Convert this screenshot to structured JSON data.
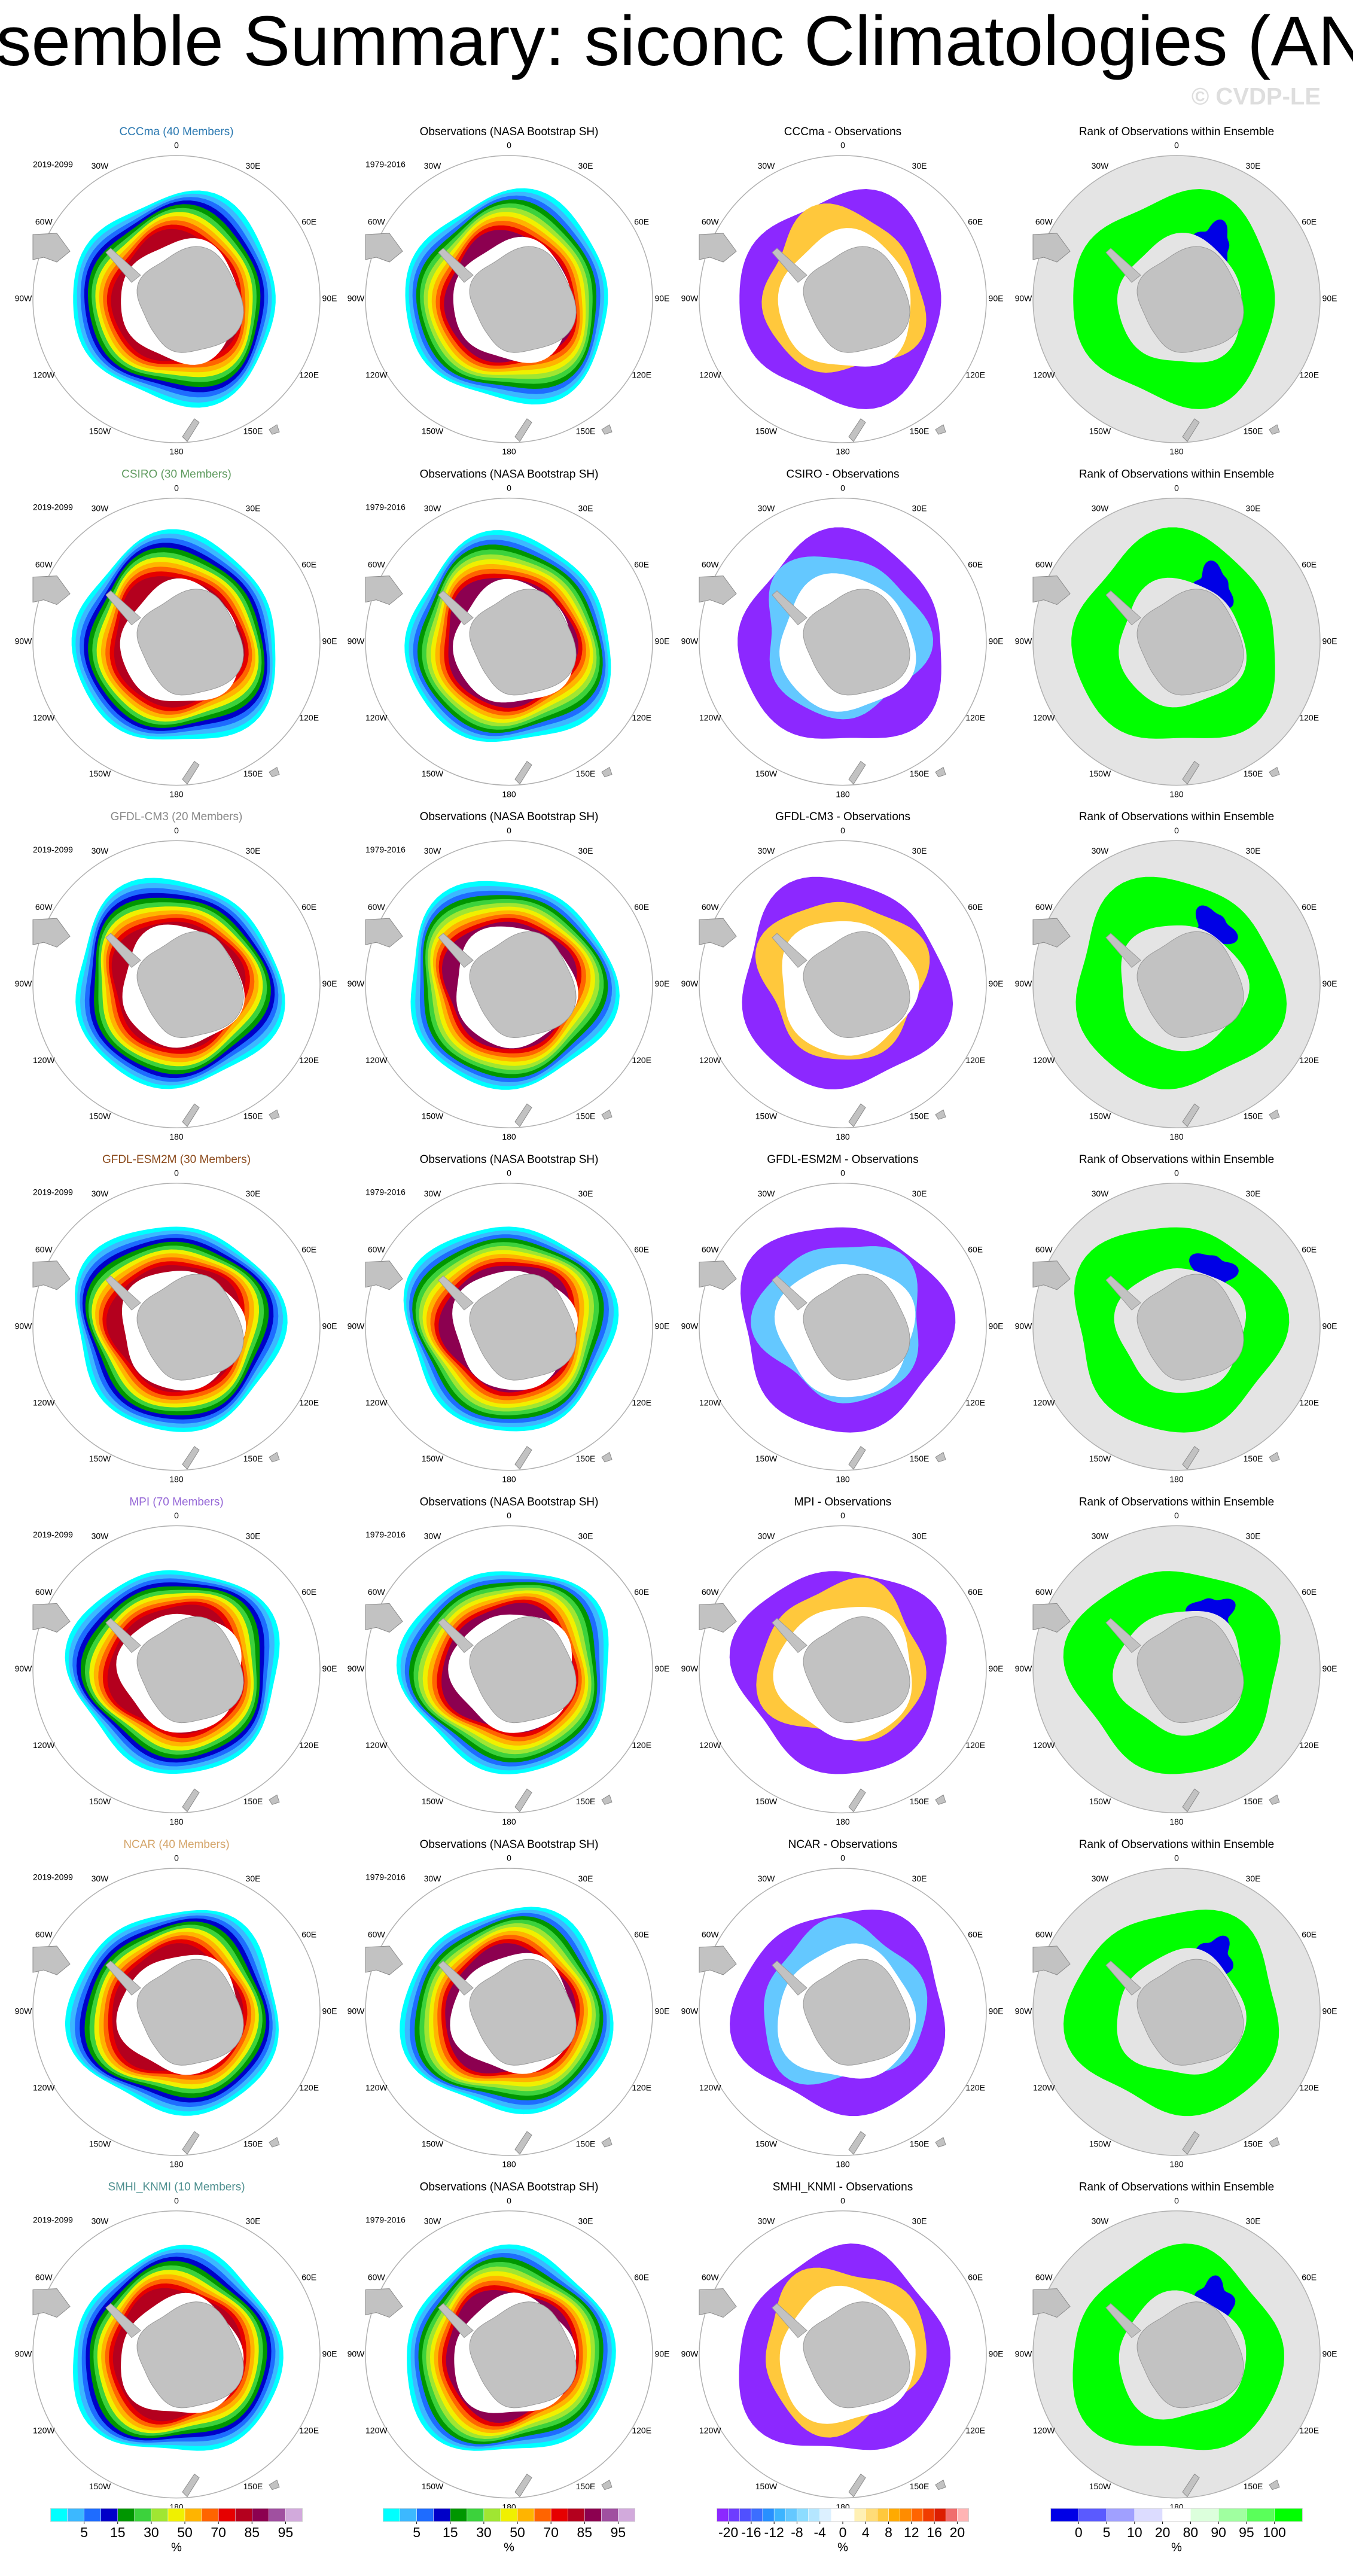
{
  "title": "Ensemble Summary: siconc Climatologies (ANN)",
  "watermark": "© CVDP-LE",
  "obs_title": "Observations (NASA Bootstrap SH)",
  "obs_period": "1979-2016",
  "model_period": "2019-2099",
  "rank_title": "Rank of Observations within Ensemble",
  "longitude_labels": [
    "0",
    "30E",
    "60E",
    "90E",
    "120E",
    "150E",
    "180",
    "150W",
    "120W",
    "90W",
    "60W",
    "30W"
  ],
  "rows": [
    {
      "model_title": "CCCma (40 Members)",
      "model_title_color": "#2a78b0",
      "diff_title": "CCCma - Observations"
    },
    {
      "model_title": "CSIRO (30 Members)",
      "model_title_color": "#5e9a5e",
      "diff_title": "CSIRO - Observations"
    },
    {
      "model_title": "GFDL-CM3 (20 Members)",
      "model_title_color": "#888888",
      "diff_title": "GFDL-CM3 - Observations"
    },
    {
      "model_title": "GFDL-ESM2M (30 Members)",
      "model_title_color": "#8b4a1c",
      "diff_title": "GFDL-ESM2M - Observations"
    },
    {
      "model_title": "MPI (70 Members)",
      "model_title_color": "#9466d6",
      "diff_title": "MPI - Observations"
    },
    {
      "model_title": "NCAR (40 Members)",
      "model_title_color": "#d4a468",
      "diff_title": "NCAR - Observations"
    },
    {
      "model_title": "SMHI_KNMI (10 Members)",
      "model_title_color": "#4d8f8f",
      "diff_title": "SMHI_KNMI - Observations"
    }
  ],
  "colorbars": [
    {
      "unit": "%",
      "levels": [
        1,
        5,
        10,
        15,
        20,
        30,
        40,
        50,
        60,
        70,
        80,
        85,
        90,
        95
      ],
      "ticks": [
        5,
        15,
        30,
        50,
        70,
        85,
        95
      ],
      "colors": [
        "#00ffff",
        "#3cb8ff",
        "#1e6cff",
        "#0000c8",
        "#009600",
        "#3cd23c",
        "#a0e632",
        "#f0f000",
        "#ffb400",
        "#ff6400",
        "#e60000",
        "#b4001e",
        "#8c0050",
        "#a050a0",
        "#d2aadc"
      ]
    },
    {
      "unit": "%",
      "levels": [
        1,
        5,
        10,
        15,
        20,
        30,
        40,
        50,
        60,
        70,
        80,
        85,
        90,
        95
      ],
      "ticks": [
        5,
        15,
        30,
        50,
        70,
        85,
        95
      ],
      "colors": [
        "#00ffff",
        "#3cb8ff",
        "#1e6cff",
        "#0000c8",
        "#009600",
        "#3cd23c",
        "#a0e632",
        "#f0f000",
        "#ffb400",
        "#ff6400",
        "#e60000",
        "#b4001e",
        "#8c0050",
        "#a050a0",
        "#d2aadc"
      ]
    },
    {
      "unit": "%",
      "levels": [
        -20,
        -18,
        -16,
        -14,
        -12,
        -10,
        -8,
        -6,
        -4,
        -2,
        0,
        2,
        4,
        6,
        8,
        10,
        12,
        14,
        16,
        18,
        20
      ],
      "ticks": [
        -20,
        -16,
        -12,
        -8,
        -4,
        0,
        4,
        8,
        12,
        16,
        20
      ],
      "colors": [
        "#8c28ff",
        "#6e3cff",
        "#5050ff",
        "#3c6eff",
        "#2890ff",
        "#3cb4ff",
        "#64c8ff",
        "#8cdcff",
        "#b4e6ff",
        "#dcf0ff",
        "#ffffff",
        "#ffffff",
        "#fff0b4",
        "#ffdc78",
        "#ffc83c",
        "#ffaa00",
        "#ff8c00",
        "#ff6400",
        "#f03c00",
        "#dc1e00",
        "#f06e6e",
        "#ffb4b4"
      ]
    },
    {
      "unit": "%",
      "levels": [
        0,
        5,
        10,
        20,
        80,
        90,
        95,
        100
      ],
      "ticks": [
        0,
        5,
        10,
        20,
        80,
        90,
        95,
        100
      ],
      "colors": [
        "#0000e6",
        "#5a5aff",
        "#a0a0ff",
        "#dcdcff",
        "#ffffff",
        "#dcffdc",
        "#a0ffa0",
        "#5aff5a",
        "#00ff00"
      ]
    }
  ]
}
